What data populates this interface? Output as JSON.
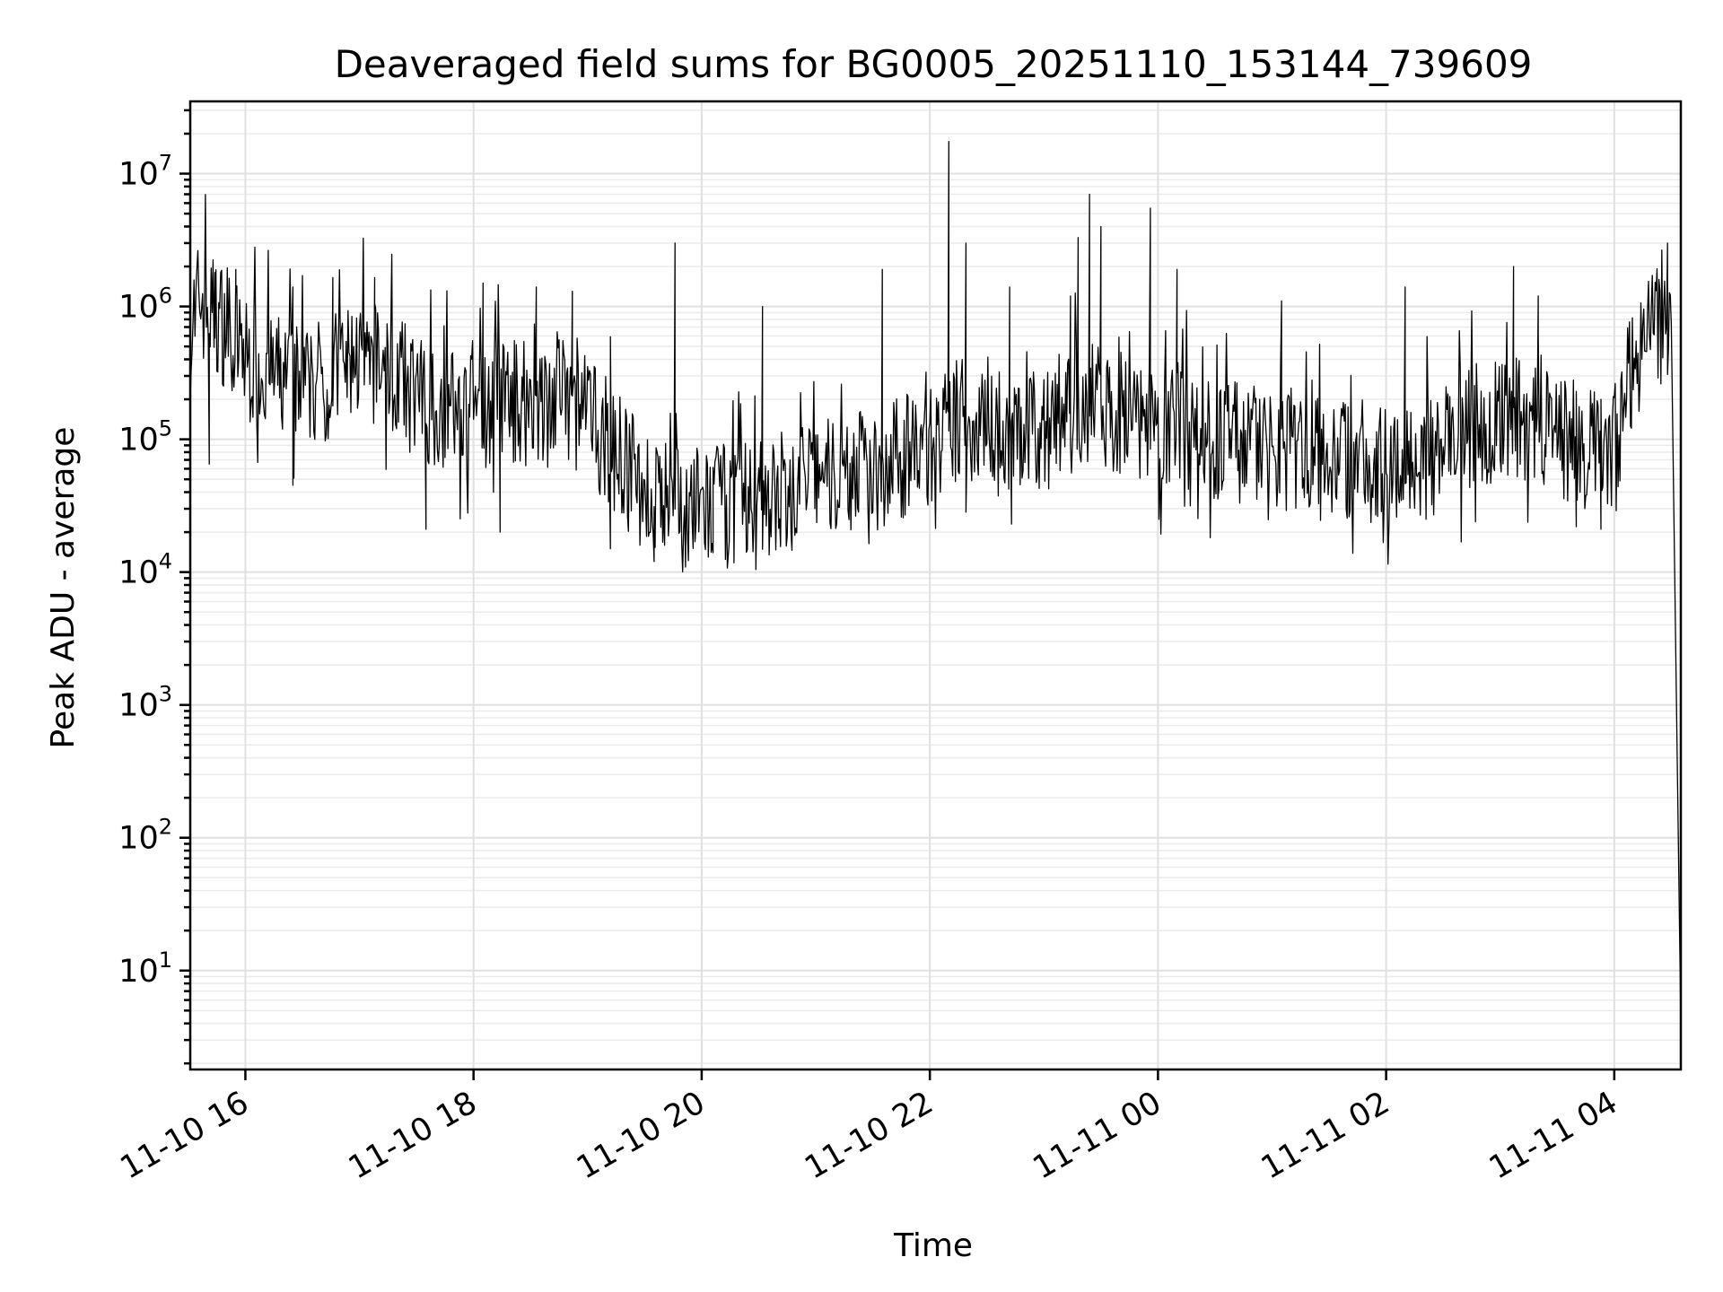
{
  "chart_data": {
    "type": "line",
    "title": "Deaveraged field sums for BG0005_20251110_153144_739609",
    "xlabel": "Time",
    "ylabel": "Peak ADU - average",
    "x_axis_type": "datetime",
    "xlim": [
      "2025-11-10 15:31",
      "2025-11-11 04:35"
    ],
    "ylim": [
      1.8,
      35000000
    ],
    "yscale": "log",
    "grid": true,
    "grid_minor": true,
    "x_ticks": [
      {
        "value": "2025-11-10 16:00",
        "label": "11-10 16"
      },
      {
        "value": "2025-11-10 18:00",
        "label": "11-10 18"
      },
      {
        "value": "2025-11-10 20:00",
        "label": "11-10 20"
      },
      {
        "value": "2025-11-10 22:00",
        "label": "11-10 22"
      },
      {
        "value": "2025-11-11 00:00",
        "label": "11-11 00"
      },
      {
        "value": "2025-11-11 02:00",
        "label": "11-11 02"
      },
      {
        "value": "2025-11-11 04:00",
        "label": "11-11 04"
      }
    ],
    "y_ticks": [
      {
        "value": 10,
        "base": "10",
        "exp": "1"
      },
      {
        "value": 100,
        "base": "10",
        "exp": "2"
      },
      {
        "value": 1000,
        "base": "10",
        "exp": "3"
      },
      {
        "value": 10000,
        "base": "10",
        "exp": "4"
      },
      {
        "value": 100000,
        "base": "10",
        "exp": "5"
      },
      {
        "value": 1000000,
        "base": "10",
        "exp": "6"
      },
      {
        "value": 10000000,
        "base": "10",
        "exp": "7"
      }
    ],
    "line_color": "#000000",
    "series": [
      {
        "x": [
          "2025-11-10 15:31",
          "2025-11-10 15:36",
          "2025-11-10 15:41",
          "2025-11-10 15:46",
          "2025-11-10 15:51",
          "2025-11-10 16:00",
          "2025-11-10 16:15",
          "2025-11-10 16:30",
          "2025-11-10 16:45",
          "2025-11-10 17:00",
          "2025-11-10 17:15",
          "2025-11-10 17:30",
          "2025-11-10 17:45",
          "2025-11-10 18:00",
          "2025-11-10 18:15",
          "2025-11-10 18:30",
          "2025-11-10 18:45",
          "2025-11-10 19:00",
          "2025-11-10 19:15",
          "2025-11-10 19:30",
          "2025-11-10 19:45",
          "2025-11-10 20:00",
          "2025-11-10 20:15",
          "2025-11-10 20:30",
          "2025-11-10 20:45",
          "2025-11-10 21:00",
          "2025-11-10 21:15",
          "2025-11-10 21:30",
          "2025-11-10 21:45",
          "2025-11-10 22:00",
          "2025-11-10 22:15",
          "2025-11-10 22:30",
          "2025-11-10 22:45",
          "2025-11-10 23:00",
          "2025-11-10 23:15",
          "2025-11-10 23:30",
          "2025-11-10 23:45",
          "2025-11-11 00:00",
          "2025-11-11 00:15",
          "2025-11-11 00:30",
          "2025-11-11 00:45",
          "2025-11-11 01:00",
          "2025-11-11 01:15",
          "2025-11-11 01:30",
          "2025-11-11 01:45",
          "2025-11-11 02:00",
          "2025-11-11 02:15",
          "2025-11-11 02:30",
          "2025-11-11 02:45",
          "2025-11-11 03:00",
          "2025-11-11 03:15",
          "2025-11-11 03:30",
          "2025-11-11 03:45",
          "2025-11-11 04:00",
          "2025-11-11 04:10",
          "2025-11-11 04:20",
          "2025-11-11 04:30",
          "2025-11-11 04:35"
        ],
        "y": [
          600000,
          1200000,
          900000,
          800000,
          700000,
          400000,
          300000,
          250000,
          300000,
          400000,
          350000,
          200000,
          180000,
          150000,
          200000,
          180000,
          200000,
          150000,
          80000,
          40000,
          30000,
          30000,
          32000,
          35000,
          40000,
          50000,
          55000,
          60000,
          70000,
          90000,
          120000,
          150000,
          100000,
          120000,
          150000,
          180000,
          150000,
          130000,
          120000,
          100000,
          90000,
          85000,
          80000,
          75000,
          70000,
          65000,
          70000,
          80000,
          120000,
          150000,
          130000,
          100000,
          80000,
          70000,
          400000,
          600000,
          1000000,
          4
        ]
      }
    ],
    "spikes": [
      {
        "x": "2025-11-10 15:44",
        "y": 1800000
      },
      {
        "x": "2025-11-10 15:55",
        "y": 1900000
      },
      {
        "x": "2025-11-10 16:25",
        "y": 1400000
      },
      {
        "x": "2025-11-10 16:46",
        "y": 1650000
      },
      {
        "x": "2025-11-10 17:08",
        "y": 1650000
      },
      {
        "x": "2025-11-10 18:05",
        "y": 1500000
      },
      {
        "x": "2025-11-10 18:33",
        "y": 1400000
      },
      {
        "x": "2025-11-10 18:52",
        "y": 1300000
      },
      {
        "x": "2025-11-10 19:46",
        "y": 3000000
      },
      {
        "x": "2025-11-10 20:32",
        "y": 1000000
      },
      {
        "x": "2025-11-10 21:35",
        "y": 1900000
      },
      {
        "x": "2025-11-10 22:10",
        "y": 17500000
      },
      {
        "x": "2025-11-10 22:19",
        "y": 3000000
      },
      {
        "x": "2025-11-10 22:42",
        "y": 1400000
      },
      {
        "x": "2025-11-10 23:14",
        "y": 1200000
      },
      {
        "x": "2025-11-10 23:18",
        "y": 3300000
      },
      {
        "x": "2025-11-10 23:24",
        "y": 7000000
      },
      {
        "x": "2025-11-10 23:30",
        "y": 4000000
      },
      {
        "x": "2025-11-10 23:56",
        "y": 5500000
      },
      {
        "x": "2025-11-11 00:10",
        "y": 1900000
      },
      {
        "x": "2025-11-11 01:05",
        "y": 1100000
      },
      {
        "x": "2025-11-11 02:10",
        "y": 1400000
      },
      {
        "x": "2025-11-11 03:07",
        "y": 2000000
      },
      {
        "x": "2025-11-11 03:20",
        "y": 1200000
      },
      {
        "x": "2025-11-11 04:28",
        "y": 3000000
      }
    ],
    "dips": [
      {
        "x": "2025-11-10 15:41",
        "y": 65000
      },
      {
        "x": "2025-11-10 16:25",
        "y": 45000
      },
      {
        "x": "2025-11-10 17:35",
        "y": 21000
      },
      {
        "x": "2025-11-10 18:14",
        "y": 20000
      },
      {
        "x": "2025-11-10 19:12",
        "y": 15000
      },
      {
        "x": "2025-11-10 19:35",
        "y": 12000
      },
      {
        "x": "2025-11-10 20:06",
        "y": 14000
      },
      {
        "x": "2025-11-10 22:43",
        "y": 23000
      },
      {
        "x": "2025-11-11 03:40",
        "y": 22000
      },
      {
        "x": "2025-11-11 03:53",
        "y": 21000
      }
    ]
  }
}
